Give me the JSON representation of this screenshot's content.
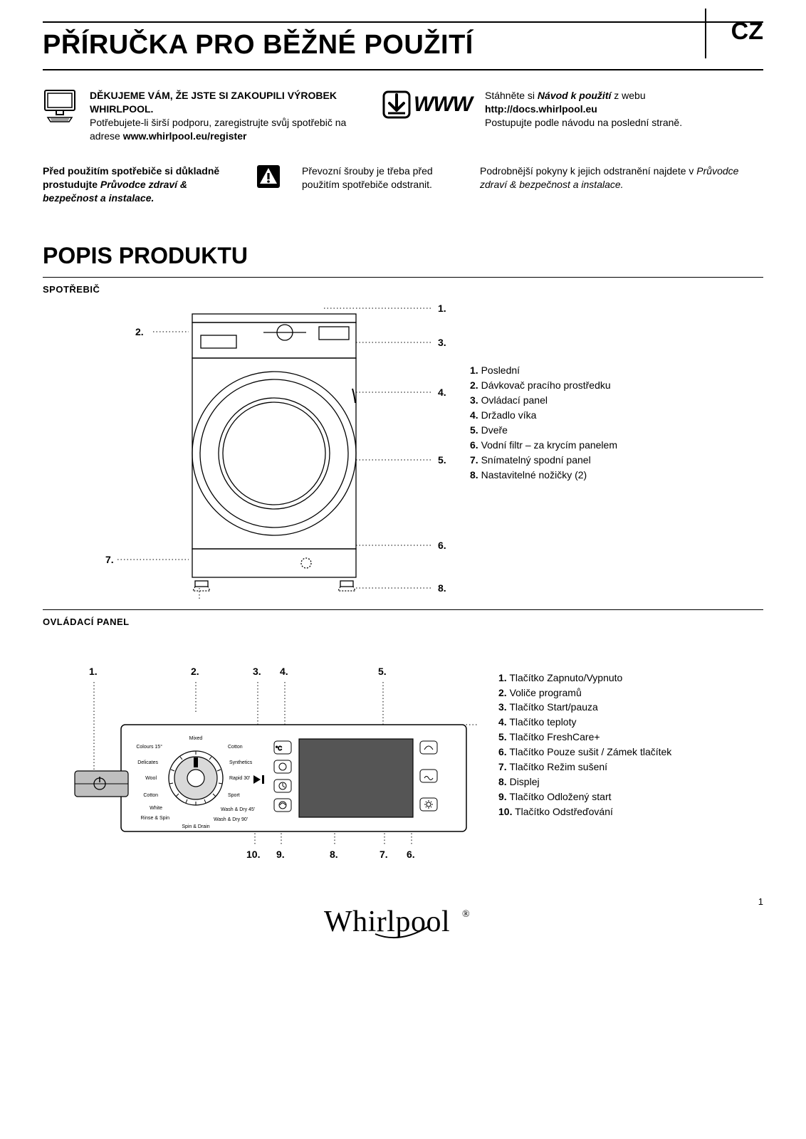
{
  "lang_code": "CZ",
  "main_title": "PŘÍRUČKA PRO BĚŽNÉ POUŽITÍ",
  "intro": {
    "thanks_bold": "DĚKUJEME VÁM, ŽE JSTE SI ZAKOUPILI VÝROBEK WHIRLPOOL.",
    "support_text": "Potřebujete-li širší podporu, zaregistrujte svůj spotřebič na adrese ",
    "support_url": "www.whirlpool.eu/register",
    "download_text_pre": "Stáhněte si ",
    "download_text_em": "Návod k použití",
    "download_text_post": " z webu",
    "download_url": "http://docs.whirlpool.eu",
    "download_follow": "Postupujte podle návodu na poslední straně."
  },
  "warn": {
    "col1_pre": "Před použitím spotřebiče si důkladně prostudujte ",
    "col1_em": "Průvodce zdraví & bezpečnost a instalace.",
    "col2": "Převozní šrouby je třeba před použitím spotřebiče odstranit.",
    "col3_pre": "Podrobnější pokyny k jejich odstranění najdete v ",
    "col3_em": "Průvodce zdraví & bezpečnost a instalace."
  },
  "section_title": "POPIS PRODUKTU",
  "appliance_heading": "SPOTŘEBIČ",
  "appliance_callouts": [
    "1.",
    "2.",
    "3.",
    "4.",
    "5.",
    "6.",
    "7.",
    "8."
  ],
  "appliance_legend": [
    {
      "n": "1.",
      "t": "Poslední"
    },
    {
      "n": "2.",
      "t": "Dávkovač pracího prostředku"
    },
    {
      "n": "3.",
      "t": "Ovládací panel"
    },
    {
      "n": "4.",
      "t": "Držadlo víka"
    },
    {
      "n": "5.",
      "t": "Dveře"
    },
    {
      "n": "6.",
      "t": "Vodní filtr – za krycím panelem"
    },
    {
      "n": "7.",
      "t": "Snímatelný spodní panel"
    },
    {
      "n": "8.",
      "t": "Nastavitelné nožičky (2)"
    }
  ],
  "panel_heading": "OVLÁDACÍ PANEL",
  "panel_top_callouts": [
    "1.",
    "2.",
    "3.",
    "4.",
    "5."
  ],
  "panel_bottom_callouts": [
    "10.",
    "9.",
    "8.",
    "7.",
    "6."
  ],
  "panel_legend": [
    {
      "n": "1.",
      "t": "Tlačítko Zapnuto/Vypnuto"
    },
    {
      "n": "2.",
      "t": "Voliče programů"
    },
    {
      "n": "3.",
      "t": "Tlačítko Start/pauza"
    },
    {
      "n": "4.",
      "t": "Tlačítko teploty"
    },
    {
      "n": "5.",
      "t": "Tlačítko FreshCare+"
    },
    {
      "n": "6.",
      "t": "Tlačítko Pouze sušit / Zámek tlačítek"
    },
    {
      "n": "7.",
      "t": "Tlačítko Režim sušení"
    },
    {
      "n": "8.",
      "t": "Displej"
    },
    {
      "n": "9.",
      "t": "Tlačítko Odložený start"
    },
    {
      "n": "10.",
      "t": "Tlačítko Odstřeďování"
    }
  ],
  "dial_labels": {
    "top": "Mixed",
    "right": [
      "Cotton",
      "Synthetics",
      "Rapid 30'",
      "Sport",
      "Wash & Dry 45'",
      "Wash & Dry 90'"
    ],
    "left": [
      "Colours 15°",
      "Delicates",
      "Wool",
      "Cotton",
      "White",
      "Rinse & Spin"
    ],
    "bottom": "Spin & Drain"
  },
  "temp_label": "°C",
  "page_number": "1",
  "brand": "Whirlpool",
  "colors": {
    "black": "#000000",
    "white": "#ffffff",
    "grey_panel": "#d9d9d9",
    "grey_display": "#555555",
    "grey_button": "#bfbfbf"
  }
}
